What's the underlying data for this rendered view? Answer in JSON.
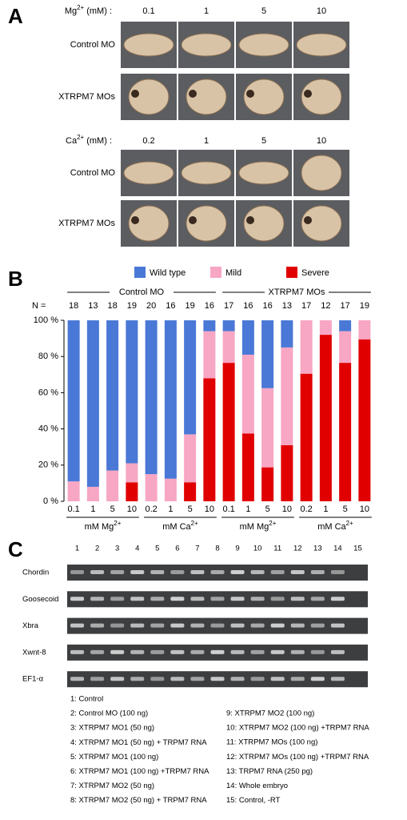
{
  "panel_a": {
    "label": "A",
    "blocks": [
      {
        "header": {
          "text": "Mg",
          "sup": "2+",
          "unit": "(mM) :"
        },
        "columns": [
          "0.1",
          "1",
          "5",
          "10"
        ]
      },
      {
        "header": {
          "text": "Ca",
          "sup": "2+",
          "unit": "(mM) :"
        },
        "columns": [
          "0.2",
          "1",
          "5",
          "10"
        ]
      }
    ],
    "rows": [
      "Control MO",
      "XTRPM7 MOs"
    ]
  },
  "chart_data": {
    "type": "stacked_bar",
    "label": "B",
    "categories": [
      "0.1",
      "1",
      "5",
      "10",
      "0.2",
      "1",
      "5",
      "10",
      "0.1",
      "1",
      "5",
      "10",
      "0.2",
      "1",
      "5",
      "10"
    ],
    "n_label": "N =",
    "n": [
      18,
      13,
      18,
      19,
      20,
      16,
      19,
      16,
      17,
      16,
      16,
      13,
      17,
      12,
      17,
      19
    ],
    "groups": [
      "Control MO",
      "XTRPM7 MOs"
    ],
    "subgroups": [
      {
        "text": "mM Mg",
        "sup": "2+"
      },
      {
        "text": "mM Ca",
        "sup": "2+"
      },
      {
        "text": "mM Mg",
        "sup": "2+"
      },
      {
        "text": "mM Ca",
        "sup": "2+"
      }
    ],
    "series": [
      {
        "name": "Wild type",
        "color": "#4a78d6",
        "values": [
          89,
          92,
          83,
          79,
          85,
          87.5,
          63,
          6,
          6,
          19,
          37.5,
          15,
          0,
          0,
          6,
          0
        ]
      },
      {
        "name": "Mild",
        "color": "#f7a6c4",
        "values": [
          11,
          8,
          17,
          10.5,
          15,
          12.5,
          26.5,
          26,
          17.5,
          43.5,
          43.75,
          54,
          29.5,
          8,
          17.5,
          10.5
        ]
      },
      {
        "name": "Severe",
        "color": "#e10000",
        "values": [
          0,
          0,
          0,
          10.5,
          0,
          0,
          10.5,
          68,
          76.5,
          37.5,
          18.75,
          31,
          70.5,
          92,
          76.5,
          89.5
        ]
      }
    ],
    "ylim": [
      0,
      100
    ],
    "yticks": [
      {
        "value": 0,
        "label": "0 %"
      },
      {
        "value": 20,
        "label": "20 %"
      },
      {
        "value": 40,
        "label": "40 %"
      },
      {
        "value": 60,
        "label": "60 %"
      },
      {
        "value": 80,
        "label": "80 %"
      },
      {
        "value": 100,
        "label": "100 %"
      }
    ]
  },
  "panel_c": {
    "label": "C",
    "lanes": [
      1,
      2,
      3,
      4,
      5,
      6,
      7,
      8,
      9,
      10,
      11,
      12,
      13,
      14,
      15
    ],
    "genes": [
      "Chordin",
      "Goosecoid",
      "Xbra",
      "Xwnt-8",
      "EF1-α"
    ],
    "legend": [
      "1: Control",
      "2: Control MO (100 ng)",
      "3: XTRPM7 MO1 (50 ng)",
      "4: XTRPM7 MO1 (50 ng) + TRPM7 RNA",
      "5: XTRPM7 MO1 (100 ng)",
      "6: XTRPM7 MO1 (100 ng) +TRPM7 RNA",
      "7: XTRPM7 MO2 (50 ng)",
      "8: XTRPM7 MO2 (50 ng) + TRPM7 RNA",
      "9: XTRPM7 MO2 (100 ng)",
      "10: XTRPM7 MO2 (100 ng) +TRPM7 RNA",
      "11: XTRPM7 MOs (100 ng)",
      "12: XTRPM7 MOs (100 ng) +TRPM7 RNA",
      "13: TRPM7 RNA (250 pg)",
      "14: Whole embryo",
      "15: Control, -RT"
    ]
  }
}
